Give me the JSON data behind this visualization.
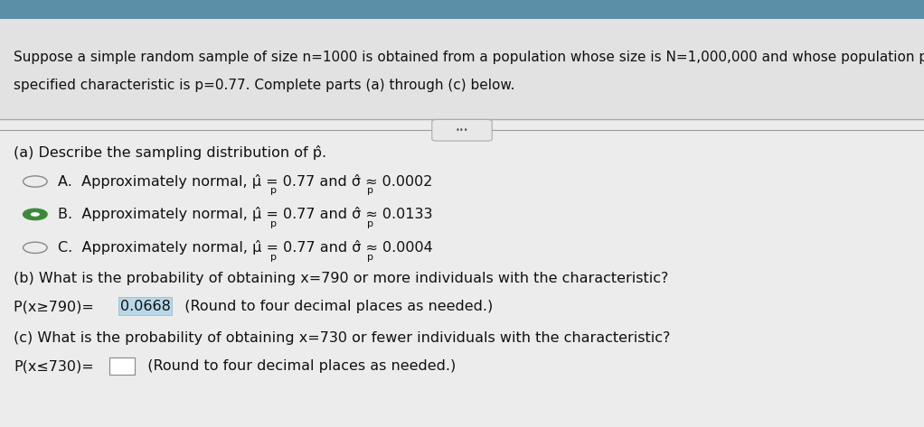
{
  "bg_color": "#c8c8c8",
  "top_bar_color": "#5b8fa8",
  "panel_color": "#ececec",
  "header_bg": "#e0e0e0",
  "header_text_line1": "Suppose a simple random sample of size n​=​1000 is obtained from a population whose size is N​=​1,000,000 and whose population proportion with a",
  "header_text_line2": "specified characteristic is p​=​0.77. Complete parts (a) through (c) below.",
  "part_a_label": "(a) Describe the sampling distribution of p̂.",
  "option_A_text": "A.  Approximately normal, μ",
  "option_A_sub1": "̂",
  "option_A_sub2": "p",
  "option_A_mid": " = 0.77 and σ",
  "option_A_sub3": "̂",
  "option_A_sub4": "p",
  "option_A_end": " ≈ 0.0002",
  "option_B_text": "B.  Approximately normal, μ",
  "option_B_end": " ≈ 0.0133",
  "option_C_text": "C.  Approximately normal, μ",
  "option_C_end": " ≈ 0.0004",
  "selected_option": "B",
  "part_b_label": "(b) What is the probability of obtaining x​=​790 or more individuals with the characteristic?",
  "part_b_prefix": "P(x≥790)= ",
  "part_b_answer": "0.0668",
  "part_b_suffix": "  (Round to four decimal places as needed.)",
  "part_c_label": "(c) What is the probability of obtaining x​=​730 or fewer individuals with the characteristic?",
  "part_c_prefix": "P(x≤730)=",
  "part_c_suffix": "  (Round to four decimal places as needed.)",
  "text_color": "#111111",
  "highlight_color": "#b8d8e8",
  "radio_unsel_color": "#888888",
  "radio_sel_color": "#3a8a3a",
  "font_size": 11.5,
  "header_font_size": 11.0
}
